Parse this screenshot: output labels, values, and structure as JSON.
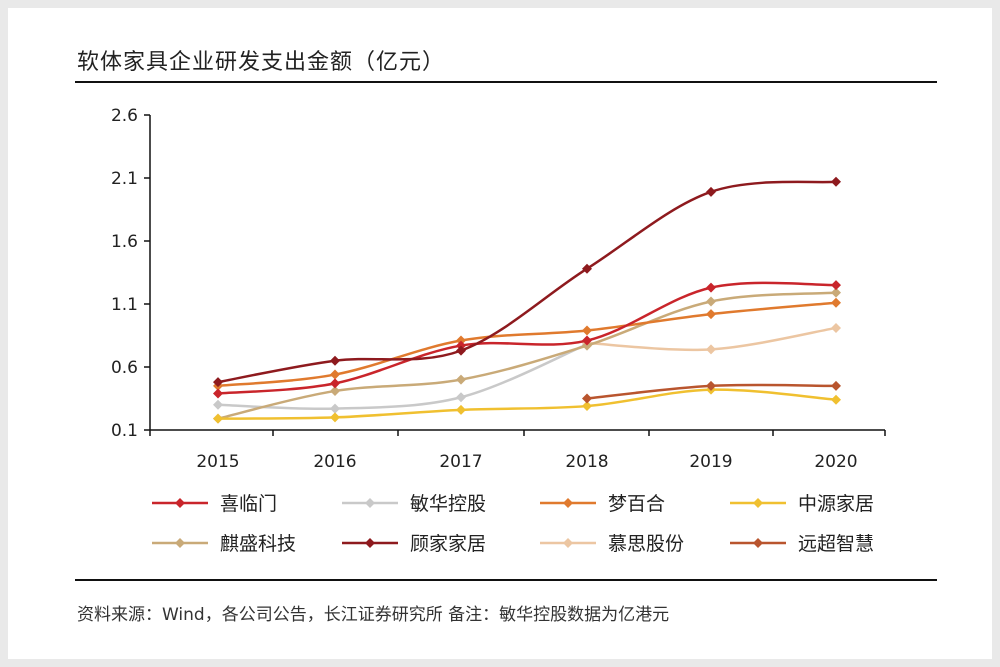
{
  "title": "软体家具企业研发支出金额（亿元）",
  "source": "资料来源：Wind，各公司公告，长江证券研究所  备注：敏华控股数据为亿港元",
  "chart_data": {
    "type": "line",
    "title": "软体家具企业研发支出金额（亿元）",
    "x": [
      "2015",
      "2016",
      "2017",
      "2018",
      "2019",
      "2020"
    ],
    "ylim": [
      0.1,
      2.6
    ],
    "yticks": [
      0.1,
      0.6,
      1.1,
      1.6,
      2.1,
      2.6
    ],
    "ytick_labels": [
      "0.1",
      "0.6",
      "1.1",
      "1.6",
      "2.1",
      "2.6"
    ],
    "grid": false,
    "legend_placement": "bottom",
    "series": [
      {
        "name": "喜临门",
        "color": "#c9252b",
        "values": [
          0.39,
          0.47,
          0.77,
          0.81,
          1.23,
          1.25
        ]
      },
      {
        "name": "敏华控股",
        "color": "#c9c9c9",
        "values": [
          0.3,
          0.27,
          0.36,
          0.78,
          null,
          null
        ]
      },
      {
        "name": "梦百合",
        "color": "#e07a2e",
        "values": [
          0.45,
          0.54,
          0.81,
          0.89,
          1.02,
          1.11
        ]
      },
      {
        "name": "中源家居",
        "color": "#f0c030",
        "values": [
          0.19,
          0.2,
          0.26,
          0.29,
          0.42,
          0.34
        ]
      },
      {
        "name": "麒盛科技",
        "color": "#c9aa78",
        "values": [
          0.19,
          0.41,
          0.5,
          0.77,
          1.12,
          1.19
        ]
      },
      {
        "name": "顾家家居",
        "color": "#8e1a1e",
        "values": [
          0.48,
          0.65,
          0.73,
          1.38,
          1.99,
          2.07
        ]
      },
      {
        "name": "慕思股份",
        "color": "#ecc6a2",
        "values": [
          null,
          null,
          null,
          0.79,
          0.74,
          0.91
        ]
      },
      {
        "name": "远超智慧",
        "color": "#b9552e",
        "values": [
          null,
          null,
          null,
          0.35,
          0.45,
          0.45
        ]
      }
    ]
  }
}
